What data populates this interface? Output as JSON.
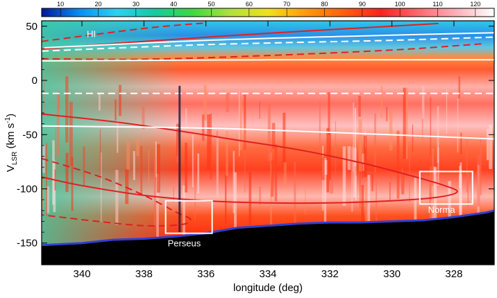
{
  "chart_data": {
    "type": "heatmap",
    "title": "",
    "xlabel": "longitude (deg)",
    "ylabel_main": "V",
    "ylabel_sub": "LSR",
    "ylabel_unit_pre": " (km s",
    "ylabel_unit_exp": "-1",
    "ylabel_unit_post": ")",
    "xlim": [
      341.3,
      326.7
    ],
    "ylim": [
      -170,
      55
    ],
    "x_ticks": [
      340,
      338,
      336,
      334,
      332,
      330,
      328
    ],
    "y_ticks": [
      50,
      0,
      -50,
      -100,
      -150
    ],
    "colorbar": {
      "min": 5,
      "max": 125,
      "ticks": [
        10,
        20,
        30,
        40,
        50,
        60,
        70,
        80,
        90,
        100,
        110,
        120
      ],
      "colors": [
        "#00189a",
        "#0a8ef0",
        "#30d0f0",
        "#18c8a0",
        "#40d840",
        "#b0e040",
        "#f0e020",
        "#ff9a10",
        "#ff6010",
        "#ff2020",
        "#ff6a70",
        "#ffb0b8",
        "#ffffff"
      ]
    },
    "annotations": [
      {
        "text": "HI",
        "l": 339.7,
        "v": 40
      },
      {
        "text": "Norma",
        "l": 328.4,
        "v": -122
      },
      {
        "text": "Perseus",
        "l": 336.7,
        "v": -153
      }
    ],
    "boxes": [
      {
        "name": "Perseus",
        "l_min": 335.8,
        "l_max": 337.3,
        "v_min": -141,
        "v_max": -111
      },
      {
        "name": "Norma",
        "l_min": 327.4,
        "l_max": 329.1,
        "v_min": -114,
        "v_max": -84
      }
    ],
    "curves": [
      {
        "name": "solid-upper",
        "color": "#e02020",
        "dash": false,
        "points": [
          [
            341.3,
            29
          ],
          [
            338,
            36
          ],
          [
            334,
            43.5
          ],
          [
            330,
            50
          ],
          [
            328.5,
            52.5
          ]
        ]
      },
      {
        "name": "dashed-top",
        "color": "#e02020",
        "dash": true,
        "points": [
          [
            341.3,
            36
          ],
          [
            338,
            48
          ],
          [
            336,
            53
          ]
        ]
      },
      {
        "name": "dashed-mid",
        "color": "#e02020",
        "dash": true,
        "points": [
          [
            341.3,
            20
          ],
          [
            338,
            19.5
          ],
          [
            334,
            23
          ],
          [
            330,
            28
          ],
          [
            327,
            34
          ]
        ]
      },
      {
        "name": "solid-ring",
        "color": "#e02020",
        "dash": false,
        "points": [
          [
            341.3,
            -31
          ],
          [
            339,
            -38
          ],
          [
            337,
            -46
          ],
          [
            335,
            -55
          ],
          [
            333,
            -64
          ],
          [
            331,
            -76
          ],
          [
            329.5,
            -87
          ],
          [
            328.3,
            -97
          ],
          [
            327.9,
            -103
          ],
          [
            328.6,
            -108
          ],
          [
            330,
            -111
          ],
          [
            332,
            -113
          ],
          [
            334,
            -113
          ],
          [
            336,
            -111
          ],
          [
            338,
            -106
          ],
          [
            340,
            -97
          ],
          [
            341.3,
            -89
          ]
        ]
      },
      {
        "name": "dashed-lower",
        "color": "#e02020",
        "dash": true,
        "points": [
          [
            341.3,
            -72
          ],
          [
            339.5,
            -88
          ],
          [
            338,
            -106
          ],
          [
            337,
            -121
          ],
          [
            336.5,
            -128
          ],
          [
            336.8,
            -133
          ],
          [
            338,
            -134
          ],
          [
            339.5,
            -130
          ],
          [
            341.3,
            -124
          ]
        ]
      },
      {
        "name": "white-solid-top",
        "color": "#ffffff",
        "dash": false,
        "points": [
          [
            341.3,
            30
          ],
          [
            336,
            37
          ],
          [
            331,
            41
          ],
          [
            326.7,
            44
          ]
        ]
      },
      {
        "name": "white-dashed-1",
        "color": "#ffffff",
        "dash": true,
        "points": [
          [
            341.3,
            27
          ],
          [
            336,
            33
          ],
          [
            330,
            37
          ],
          [
            326.7,
            40
          ]
        ]
      },
      {
        "name": "white-solid-2",
        "color": "#ffffff",
        "dash": false,
        "points": [
          [
            341.3,
            18
          ],
          [
            334,
            19
          ],
          [
            326.7,
            19
          ]
        ]
      },
      {
        "name": "white-dashed-2",
        "color": "#ffffff",
        "dash": true,
        "points": [
          [
            341.3,
            -12
          ],
          [
            334,
            -12
          ],
          [
            326.7,
            -12
          ]
        ]
      },
      {
        "name": "white-solid-3",
        "color": "#ffffff",
        "dash": false,
        "points": [
          [
            341.3,
            -42
          ],
          [
            336,
            -44
          ],
          [
            331,
            -49
          ],
          [
            326.7,
            -54
          ]
        ]
      }
    ],
    "emission_floor": [
      [
        341.3,
        -152
      ],
      [
        340,
        -150
      ],
      [
        339,
        -147
      ],
      [
        338,
        -146
      ],
      [
        337,
        -144
      ],
      [
        336,
        -141
      ],
      [
        335,
        -136
      ],
      [
        334,
        -134
      ],
      [
        333,
        -132
      ],
      [
        332,
        -131
      ],
      [
        331,
        -131
      ],
      [
        330,
        -130
      ],
      [
        329,
        -129
      ],
      [
        328,
        -126
      ],
      [
        327,
        -122
      ],
      [
        326.7,
        -120
      ]
    ]
  }
}
